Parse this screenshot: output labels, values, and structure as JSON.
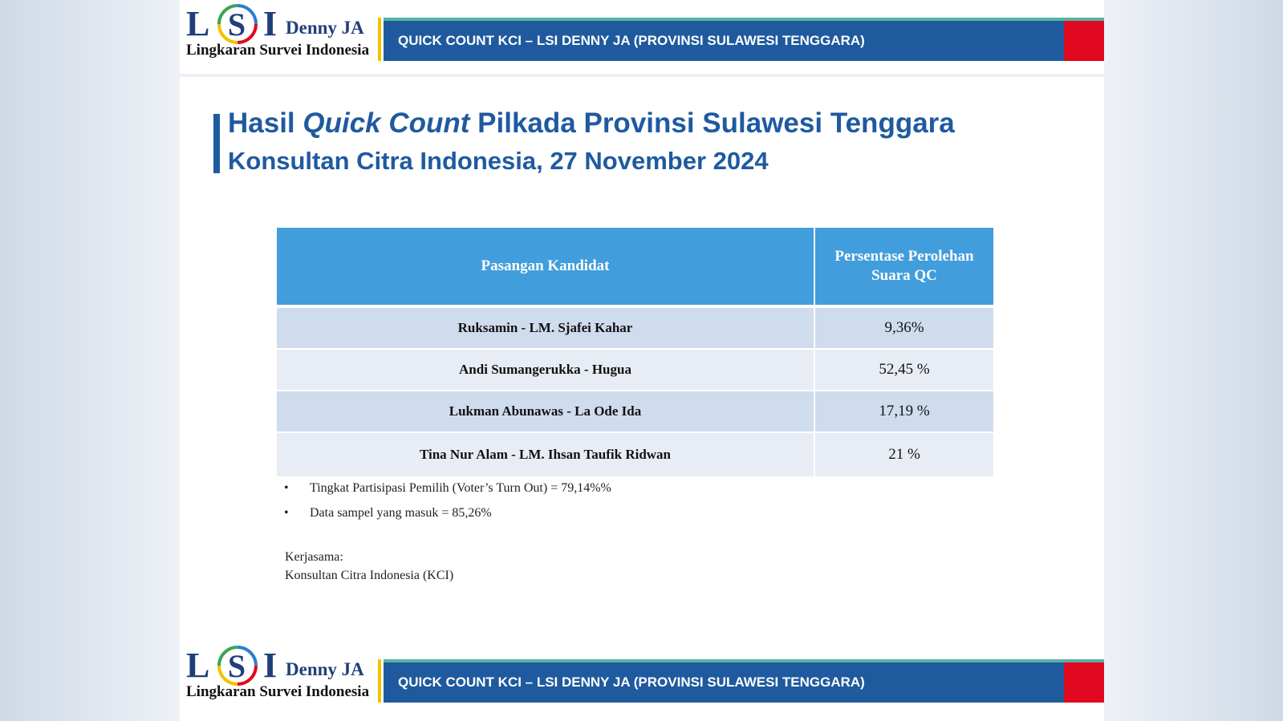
{
  "header": {
    "logo": {
      "l1": "L",
      "l2": "S",
      "l3": "I",
      "denny": "Denny JA",
      "lsi_name": "Lingkaran Survei Indonesia"
    },
    "banner_text": "QUICK COUNT KCI – LSI DENNY JA (PROVINSI SULAWESI TENGGARA)"
  },
  "title": {
    "part1": "Hasil ",
    "part2_italic": "Quick Count",
    "part3": " Pilkada Provinsi Sulawesi Tenggara",
    "line2": "Konsultan Citra Indonesia, 27 November 2024"
  },
  "table": {
    "headers": [
      "Pasangan Kandidat",
      "Persentase Perolehan Suara QC"
    ],
    "rows": [
      {
        "candidate": "Ruksamin - LM. Sjafei Kahar",
        "percent": "9,36%"
      },
      {
        "candidate": "Andi Sumangerukka - Hugua",
        "percent": "52,45 %"
      },
      {
        "candidate": "Lukman Abunawas - La Ode Ida",
        "percent": "17,19 %"
      },
      {
        "candidate": "Tina Nur Alam - LM. Ihsan Taufik Ridwan",
        "percent": "21 %"
      }
    ]
  },
  "notes": [
    "Tingkat Partisipasi Pemilih (Voter’s Turn Out) = 79,14%%",
    "Data sampel yang masuk = 85,26%"
  ],
  "cooperation": {
    "label": "Kerjasama:",
    "partner": "Konsultan Citra Indonesia (KCI)"
  },
  "footer": {
    "banner_text": "QUICK COUNT KCI – LSI DENNY JA (PROVINSI SULAWESI TENGGARA)"
  },
  "colors": {
    "brand_blue": "#1f5a9e",
    "title_blue": "#1f5aa0",
    "table_header": "#419ddb",
    "accent_red": "#e0091f",
    "accent_yellow": "#f2c200",
    "accent_teal": "#56b3a3"
  }
}
